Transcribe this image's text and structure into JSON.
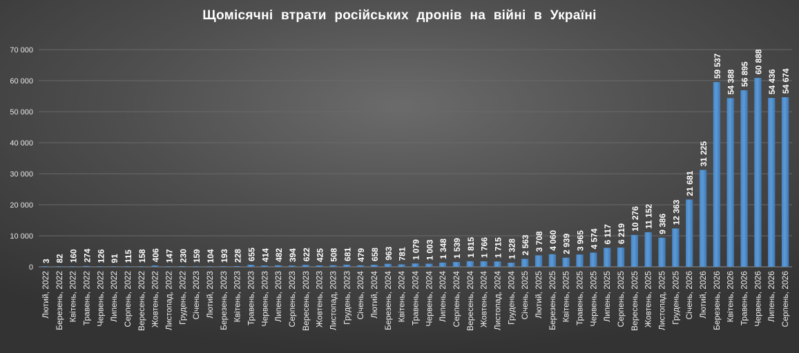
{
  "chart_data": {
    "type": "bar",
    "title": "Щомісячні  втрати  російських  дронів  на  війні  в  Україні",
    "xlabel": "",
    "ylabel": "",
    "ylim": [
      0,
      70000
    ],
    "yticks": [
      0,
      10000,
      20000,
      30000,
      40000,
      50000,
      60000,
      70000
    ],
    "ytick_labels": [
      "0",
      "10 000",
      "20 000",
      "30 000",
      "40 000",
      "50 000",
      "60 000",
      "70 000"
    ],
    "grid": true,
    "legend": "none",
    "bar_color": "#5b9bd5",
    "categories": [
      "Лютий, 2022",
      "Березень, 2022",
      "Квітень, 2022",
      "Травень, 2022",
      "Червень, 2022",
      "Липень, 2022",
      "Серпень, 2022",
      "Вересень, 2022",
      "Жовтень, 2022",
      "Листопад, 2022",
      "Грудень, 2022",
      "Січень, 2023",
      "Лютий, 2023",
      "Березень, 2023",
      "Квітень, 2023",
      "Травень, 2023",
      "Червень, 2023",
      "Липень, 2023",
      "Серпень, 2023",
      "Вересень, 2023",
      "Жовтень, 2023",
      "Листопад, 2023",
      "Грудень, 2023",
      "Січень, 2024",
      "Лютий, 2024",
      "Березень, 2024",
      "Квітень, 2024",
      "Травень, 2024",
      "Червень, 2024",
      "Липень, 2024",
      "Серпень, 2024",
      "Вересень, 2024",
      "Жовтень, 2024",
      "Листопад, 2024",
      "Грудень, 2024",
      "Січень, 2025",
      "Лютий, 2025",
      "Березень, 2025",
      "Квітень, 2025",
      "Травень, 2025",
      "Червень, 2025",
      "Липень, 2025",
      "Серпень, 2025",
      "Вересень, 2025",
      "Жовтень, 2025",
      "Листопад, 2025",
      "Грудень, 2025",
      "Січень, 2026",
      "Лютий, 2026",
      "Березень, 2026",
      "Квітень, 2026",
      "Травень, 2026",
      "Червень, 2026",
      "Липень, 2026",
      "Серпень, 2026"
    ],
    "values": [
      3,
      82,
      160,
      274,
      126,
      91,
      115,
      158,
      406,
      147,
      230,
      159,
      104,
      193,
      228,
      655,
      414,
      482,
      394,
      622,
      425,
      508,
      681,
      479,
      658,
      963,
      781,
      1079,
      1003,
      1348,
      1539,
      1815,
      1766,
      1715,
      1328,
      2563,
      3708,
      4060,
      2939,
      3965,
      4574,
      6117,
      6219,
      10276,
      11152,
      9386,
      12363,
      21681,
      31225,
      59537,
      54388,
      56895,
      60888,
      54436,
      54674
    ],
    "value_labels": [
      "3",
      "82",
      "160",
      "274",
      "126",
      "91",
      "115",
      "158",
      "406",
      "147",
      "230",
      "159",
      "104",
      "193",
      "228",
      "655",
      "414",
      "482",
      "394",
      "622",
      "425",
      "508",
      "681",
      "479",
      "658",
      "963",
      "781",
      "1 079",
      "1 003",
      "1 348",
      "1 539",
      "1 815",
      "1 766",
      "1 715",
      "1 328",
      "2 563",
      "3 708",
      "4 060",
      "2 939",
      "3 965",
      "4 574",
      "6 117",
      "6 219",
      "10 276",
      "11 152",
      "9 386",
      "12 363",
      "21 681",
      "31 225",
      "59 537",
      "54 388",
      "56 895",
      "60 888",
      "54 436",
      "54 674"
    ]
  }
}
